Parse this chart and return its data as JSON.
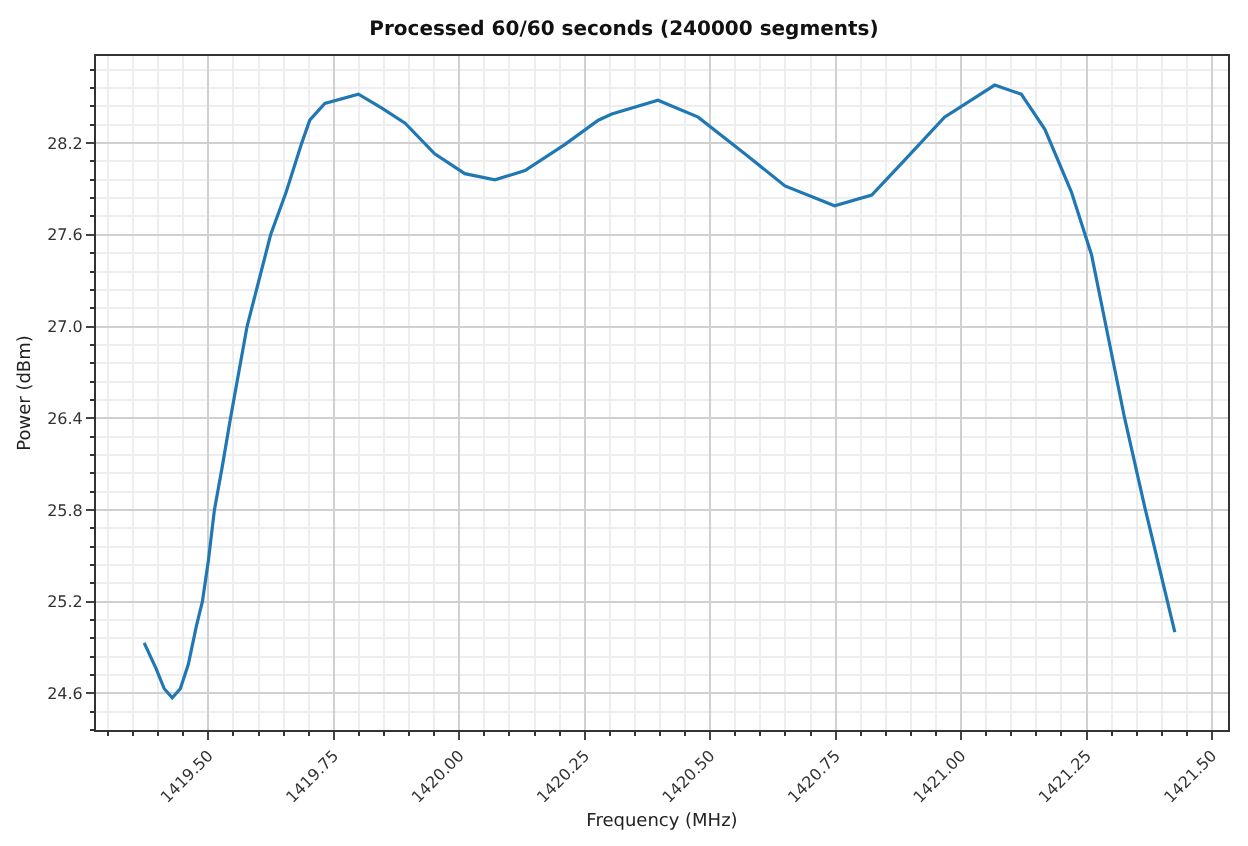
{
  "chart_data": {
    "type": "line",
    "title": "Processed 60/60 seconds (240000 segments)",
    "xlabel": "Frequency (MHz)",
    "ylabel": "Power (dBm)",
    "x": [
      1419.372,
      1419.396,
      1419.412,
      1419.428,
      1419.444,
      1419.46,
      1419.476,
      1419.488,
      1419.5,
      1419.512,
      1419.528,
      1419.544,
      1419.577,
      1419.624,
      1419.655,
      1419.686,
      1419.702,
      1419.732,
      1419.799,
      1419.845,
      1419.892,
      1419.951,
      1420.011,
      1420.071,
      1420.131,
      1420.21,
      1420.277,
      1420.304,
      1420.396,
      1420.476,
      1420.569,
      1420.649,
      1420.748,
      1420.822,
      1420.888,
      1420.967,
      1421.067,
      1421.12,
      1421.167,
      1421.22,
      1421.26,
      1421.326,
      1421.366,
      1421.426
    ],
    "series": [
      {
        "color": "#1f77b4",
        "values": [
          24.93,
          24.76,
          24.63,
          24.57,
          24.63,
          24.79,
          25.04,
          25.2,
          25.47,
          25.8,
          26.09,
          26.4,
          27.0,
          27.6,
          27.88,
          28.2,
          28.35,
          28.46,
          28.52,
          28.43,
          28.33,
          28.13,
          28.0,
          27.96,
          28.02,
          28.19,
          28.35,
          28.39,
          28.48,
          28.37,
          28.13,
          27.92,
          27.79,
          27.86,
          28.09,
          28.37,
          28.58,
          28.52,
          28.29,
          27.88,
          27.47,
          26.4,
          25.82,
          25.0
        ]
      }
    ],
    "xlim": [
      1419.276,
      1421.532
    ],
    "ylim": [
      24.36,
      28.77
    ],
    "xticks": [
      {
        "value": 1419.5,
        "label": "1419.50"
      },
      {
        "value": 1419.75,
        "label": "1419.75"
      },
      {
        "value": 1420.0,
        "label": "1420.00"
      },
      {
        "value": 1420.25,
        "label": "1420.25"
      },
      {
        "value": 1420.5,
        "label": "1420.50"
      },
      {
        "value": 1420.75,
        "label": "1420.75"
      },
      {
        "value": 1421.0,
        "label": "1421.00"
      },
      {
        "value": 1421.25,
        "label": "1421.25"
      },
      {
        "value": 1421.5,
        "label": "1421.50"
      }
    ],
    "yticks": [
      24.6,
      25.2,
      25.8,
      26.4,
      {
        "value": 27.0,
        "label": "27.0"
      },
      27.6,
      28.2
    ],
    "grid": true,
    "marker": "none",
    "line_style": "solid"
  }
}
